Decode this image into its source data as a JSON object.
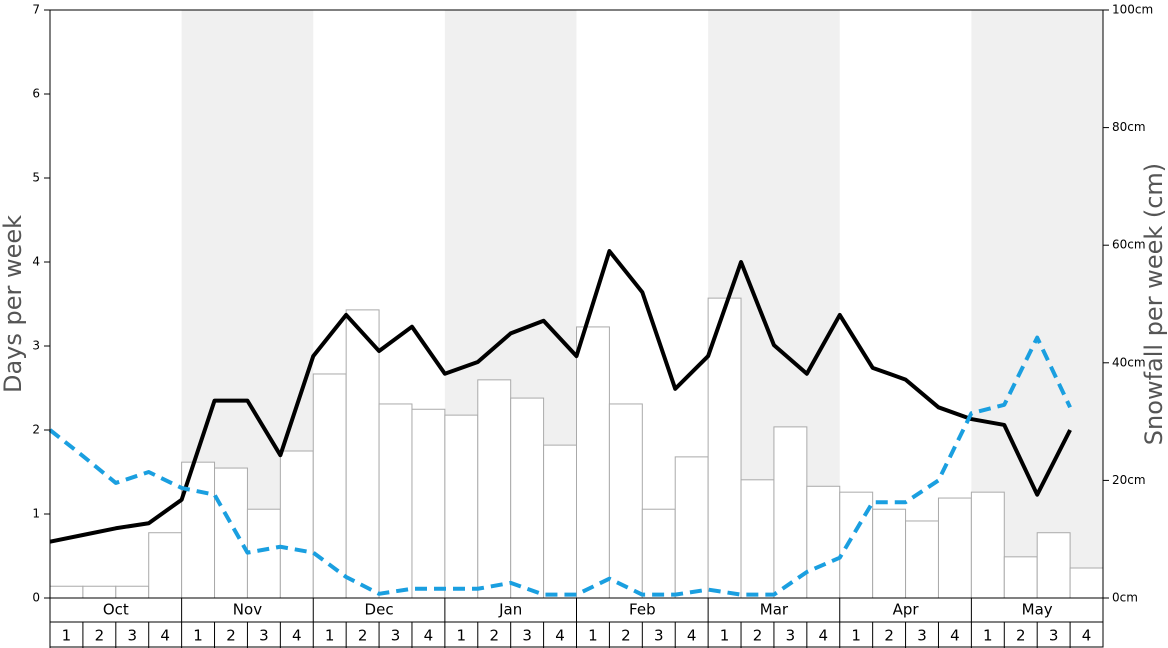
{
  "chart_data": {
    "type": "bar",
    "ylabel": "Days per week",
    "y2label": "Snowfall per week (cm)",
    "months": [
      "Oct",
      "Nov",
      "Dec",
      "Jan",
      "Feb",
      "Mar",
      "Apr",
      "May"
    ],
    "categories": [
      "1",
      "2",
      "3",
      "4",
      "1",
      "2",
      "3",
      "4",
      "1",
      "2",
      "3",
      "4",
      "1",
      "2",
      "3",
      "4",
      "1",
      "2",
      "3",
      "4",
      "1",
      "2",
      "3",
      "4",
      "1",
      "2",
      "3",
      "4",
      "1",
      "2",
      "3",
      "4"
    ],
    "ylim": [
      0,
      7
    ],
    "yticks": [
      0,
      1,
      2,
      3,
      4,
      5,
      6,
      7
    ],
    "y2lim": [
      0,
      100
    ],
    "y2ticks": [
      {
        "value": 0,
        "label": "0cm"
      },
      {
        "value": 20,
        "label": "20cm"
      },
      {
        "value": 40,
        "label": "40cm"
      },
      {
        "value": 60,
        "label": "60cm"
      },
      {
        "value": 80,
        "label": "80cm"
      },
      {
        "value": 100,
        "label": "100cm"
      }
    ],
    "series": [
      {
        "type": "bar",
        "axis": "y2",
        "color": "#ffffff",
        "values": [
          2.0,
          2.0,
          2.0,
          11.1,
          23.1,
          22.1,
          15.1,
          25.0,
          38.1,
          49.0,
          33.0,
          32.1,
          31.1,
          37.1,
          34.0,
          26.0,
          46.1,
          33.0,
          15.1,
          24.0,
          51.0,
          20.1,
          29.1,
          19.0,
          18.0,
          15.1,
          13.1,
          17.0,
          18.0,
          7.0,
          11.1,
          5.1
        ]
      },
      {
        "type": "line",
        "color": "#000000",
        "values": [
          0.67,
          0.75,
          0.83,
          0.89,
          1.17,
          2.35,
          2.35,
          1.7,
          2.88,
          3.37,
          2.94,
          3.23,
          2.67,
          2.81,
          3.15,
          3.3,
          2.88,
          4.13,
          3.64,
          2.49,
          2.88,
          4.0,
          3.01,
          2.67,
          3.37,
          2.74,
          2.6,
          2.27,
          2.13,
          2.06,
          1.23,
          2.0
        ]
      },
      {
        "type": "line",
        "dashed": true,
        "color": "#1a9fe0",
        "values": [
          2.0,
          1.69,
          1.37,
          1.5,
          1.31,
          1.23,
          0.54,
          0.61,
          0.54,
          0.25,
          0.05,
          0.11,
          0.11,
          0.11,
          0.18,
          0.04,
          0.04,
          0.23,
          0.04,
          0.04,
          0.1,
          0.04,
          0.04,
          0.31,
          0.48,
          1.14,
          1.14,
          1.4,
          2.2,
          2.3,
          3.1,
          2.27
        ]
      }
    ]
  }
}
